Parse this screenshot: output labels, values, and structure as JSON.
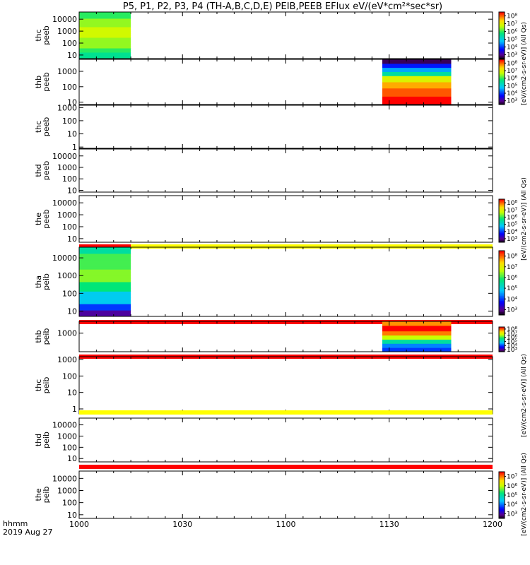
{
  "title": "P5, P1, P2, P3, P4 (TH-A,B,C,D,E) PEIB,PEEB EFlux eV/(eV*cm²*sec*sr)",
  "time_axis": {
    "hhmm_label": "hhmm",
    "date_label": "2019 Aug 27",
    "ticks": [
      "1000",
      "1030",
      "1100",
      "1130",
      "1200"
    ],
    "tick_minutes": [
      0,
      30,
      60,
      90,
      120
    ],
    "range_minutes": [
      0,
      120
    ]
  },
  "colors": {
    "red": "#ff0000",
    "yellow": "#ffff00",
    "black": "#000000"
  },
  "colorbar_titles": {
    "upper": "[eV/(cm2-s-sr-eV)] (All Qs)",
    "middle_left": "[eV/(cm2-s-sr-eV)] (All Qs)",
    "lower_mid": "[eV/(cm2-s-sr-eV)] (All Qs)",
    "lower": "[eV/(cm2-s-sr-eV)] (All Qs)"
  },
  "chart_data": [
    {
      "type": "heatmap",
      "ylabel": "thc\npeeb",
      "yscale": "log",
      "ylim": [
        5,
        40000
      ],
      "yticks": [
        "10",
        "100",
        "1000",
        "10000"
      ],
      "ytick_values": [
        10,
        100,
        1000,
        10000
      ],
      "blocks": [
        {
          "t0": 0,
          "t1": 15,
          "profile": "upper_peeb"
        }
      ],
      "colorbar": {
        "labels": [
          "10³",
          "10⁴",
          "10⁵",
          "10⁶",
          "10⁷",
          "10⁸"
        ],
        "exponents": [
          3,
          4,
          5,
          6,
          7,
          8
        ]
      }
    },
    {
      "type": "heatmap",
      "ylabel": "thb\npeeb",
      "yscale": "log",
      "ylim": [
        7,
        6000
      ],
      "yticks": [
        "10",
        "100",
        "1000"
      ],
      "ytick_values": [
        10,
        100,
        1000
      ],
      "blocks": [
        {
          "t0": 88,
          "t1": 108,
          "profile": "thb_peeb"
        }
      ],
      "colorbar": {
        "labels": [
          "10³",
          "10⁴",
          "10⁵",
          "10⁶",
          "10⁷",
          "10⁸"
        ],
        "exponents": [
          3,
          4,
          5,
          6,
          7,
          8
        ]
      }
    },
    {
      "type": "heatmap",
      "ylabel": "thc\npeeb",
      "yscale": "log",
      "ylim": [
        0.8,
        1500
      ],
      "yticks": [
        "1",
        "10",
        "100",
        "1000"
      ],
      "ytick_values": [
        1,
        10,
        100,
        1000
      ],
      "blocks": []
    },
    {
      "type": "heatmap",
      "ylabel": "thd\npeeb",
      "yscale": "log",
      "ylim": [
        7,
        40000
      ],
      "yticks": [
        "10",
        "100",
        "1000",
        "10000"
      ],
      "ytick_values": [
        10,
        100,
        1000,
        10000
      ],
      "blocks": []
    },
    {
      "type": "heatmap",
      "ylabel": "the\npeeb",
      "yscale": "log",
      "ylim": [
        5,
        40000
      ],
      "yticks": [
        "10",
        "100",
        "1000",
        "10000"
      ],
      "ytick_values": [
        10,
        100,
        1000,
        10000
      ],
      "blocks": [],
      "colorbar": {
        "labels": [
          "10³",
          "10⁴",
          "10⁵",
          "10⁶",
          "10⁷",
          "10⁸"
        ],
        "exponents": [
          3,
          4,
          5,
          6,
          7,
          8
        ]
      },
      "flag_bar": [
        {
          "t0": 0,
          "t1": 15,
          "color": "red"
        },
        {
          "t0": 15,
          "t1": 120,
          "color": "yellow"
        }
      ]
    },
    {
      "type": "heatmap",
      "ylabel": "tha\npeib",
      "yscale": "log",
      "ylim": [
        5,
        40000
      ],
      "yticks": [
        "10",
        "100",
        "1000",
        "10000"
      ],
      "ytick_values": [
        10,
        100,
        1000,
        10000
      ],
      "blocks": [
        {
          "t0": 0,
          "t1": 15,
          "profile": "tha_peib"
        }
      ],
      "colorbar": {
        "labels": [
          "10³",
          "10⁴",
          "10⁵",
          "10⁶",
          "10⁷",
          "10⁸"
        ],
        "exponents": [
          3,
          4,
          5,
          6,
          7,
          8
        ]
      },
      "flag_bar": [
        {
          "t0": 0,
          "t1": 120,
          "color": "red"
        }
      ]
    },
    {
      "type": "heatmap",
      "ylabel": "thb\npeib",
      "yscale": "log",
      "ylim": [
        60,
        6000
      ],
      "yticks": [
        "1000"
      ],
      "ytick_values": [
        1000
      ],
      "blocks": [
        {
          "t0": 88,
          "t1": 108,
          "profile": "thb_peib"
        }
      ],
      "colorbar": {
        "labels": [
          "10³",
          "10⁴",
          "10⁵",
          "10⁶",
          "10⁷",
          "10⁸"
        ],
        "exponents": [
          3,
          4,
          5,
          6,
          7,
          8
        ]
      },
      "flag_bar": [
        {
          "t0": 0,
          "t1": 120,
          "color": "red"
        }
      ]
    },
    {
      "type": "heatmap",
      "ylabel": "thc\npeib",
      "yscale": "log",
      "ylim": [
        0.5,
        1500
      ],
      "yticks": [
        "1",
        "10",
        "100",
        "1000"
      ],
      "ytick_values": [
        1,
        10,
        100,
        1000
      ],
      "blocks": [],
      "flag_bar": [
        {
          "t0": 0,
          "t1": 120,
          "color": "yellow"
        }
      ]
    },
    {
      "type": "heatmap",
      "ylabel": "thd\npeib",
      "yscale": "log",
      "ylim": [
        5,
        40000
      ],
      "yticks": [
        "10",
        "100",
        "1000",
        "10000"
      ],
      "ytick_values": [
        10,
        100,
        1000,
        10000
      ],
      "blocks": [],
      "flag_bar": [
        {
          "t0": 0,
          "t1": 120,
          "color": "red"
        }
      ]
    },
    {
      "type": "heatmap",
      "ylabel": "the\npeib",
      "yscale": "log",
      "ylim": [
        5,
        40000
      ],
      "yticks": [
        "10",
        "100",
        "1000",
        "10000"
      ],
      "ytick_values": [
        10,
        100,
        1000,
        10000
      ],
      "blocks": [],
      "colorbar": {
        "labels": [
          "10³",
          "10⁴",
          "10⁵",
          "10⁶",
          "10⁷"
        ],
        "exponents": [
          3,
          4,
          5,
          6,
          7
        ]
      }
    }
  ]
}
